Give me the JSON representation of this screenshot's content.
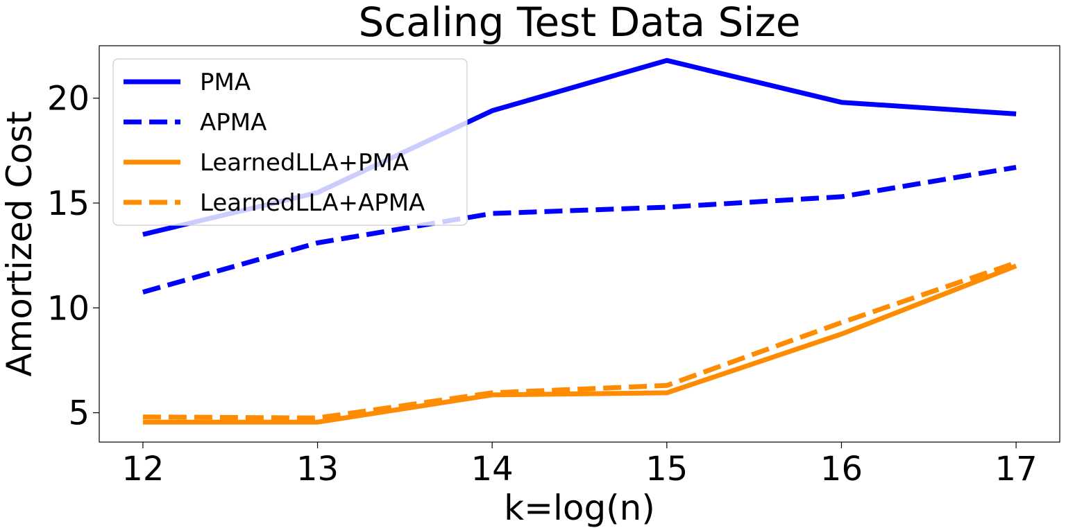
{
  "chart_data": {
    "type": "line",
    "title": "Scaling Test Data Size",
    "xlabel": "k=log(n)",
    "ylabel": "Amortized Cost",
    "x": [
      12,
      13,
      14,
      15,
      16,
      17
    ],
    "xlim": [
      11.75,
      17.25
    ],
    "ylim": [
      3.6,
      22.5
    ],
    "xticks": [
      12,
      13,
      14,
      15,
      16,
      17
    ],
    "yticks": [
      5,
      10,
      15,
      20
    ],
    "grid": false,
    "legend_position": "top-left",
    "series": [
      {
        "name": "PMA",
        "color": "#0000ff",
        "style": "solid",
        "values": [
          13.5,
          15.5,
          19.4,
          21.8,
          19.8,
          19.25
        ]
      },
      {
        "name": "APMA",
        "color": "#0000ff",
        "style": "dashed",
        "values": [
          10.75,
          13.1,
          14.5,
          14.8,
          15.3,
          16.7
        ]
      },
      {
        "name": "LearnedLLA+PMA",
        "color": "#ff8c00",
        "style": "solid",
        "values": [
          4.55,
          4.55,
          5.85,
          5.95,
          8.75,
          12.0
        ]
      },
      {
        "name": "LearnedLLA+APMA",
        "color": "#ff8c00",
        "style": "dashed",
        "values": [
          4.8,
          4.75,
          5.95,
          6.3,
          9.3,
          12.15
        ]
      }
    ]
  }
}
